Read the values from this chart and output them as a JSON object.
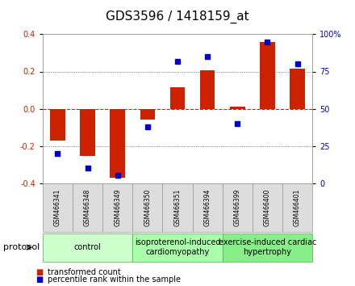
{
  "title": "GDS3596 / 1418159_at",
  "samples": [
    "GSM466341",
    "GSM466348",
    "GSM466349",
    "GSM466350",
    "GSM466351",
    "GSM466394",
    "GSM466399",
    "GSM466400",
    "GSM466401"
  ],
  "transformed_counts": [
    -0.17,
    -0.255,
    -0.37,
    -0.06,
    0.115,
    0.205,
    0.01,
    0.36,
    0.215
  ],
  "percentile_ranks": [
    20,
    10,
    5,
    38,
    82,
    85,
    40,
    95,
    80
  ],
  "ylim_left": [
    -0.4,
    0.4
  ],
  "ylim_right": [
    0,
    100
  ],
  "yticks_left": [
    -0.4,
    -0.2,
    0.0,
    0.2,
    0.4
  ],
  "yticks_right": [
    0,
    25,
    50,
    75,
    100
  ],
  "bar_color": "#cc2200",
  "marker_color": "#0000cc",
  "grid_color": "#333333",
  "bg_color": "#ffffff",
  "groups": [
    {
      "label": "control",
      "start": 0,
      "end": 3,
      "color": "#ccffcc"
    },
    {
      "label": "isoproterenol-induced\ncardiomyopathy",
      "start": 3,
      "end": 6,
      "color": "#aaffaa"
    },
    {
      "label": "exercise-induced cardiac\nhypertrophy",
      "start": 6,
      "end": 9,
      "color": "#88ee88"
    }
  ],
  "protocol_label": "protocol",
  "legend_bar_label": "transformed count",
  "legend_marker_label": "percentile rank within the sample",
  "title_fontsize": 11,
  "tick_fontsize": 7,
  "group_label_fontsize": 7
}
